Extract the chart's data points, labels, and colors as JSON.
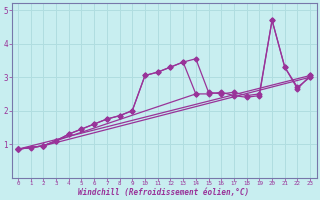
{
  "xlabel": "Windchill (Refroidissement éolien,°C)",
  "bg_color": "#c8eef0",
  "grid_color": "#b0dde0",
  "line_color": "#993399",
  "spine_color": "#7777aa",
  "xlim": [
    -0.5,
    23.5
  ],
  "ylim": [
    0,
    5.2
  ],
  "yticks": [
    1,
    2,
    3,
    4,
    5
  ],
  "xticks": [
    0,
    1,
    2,
    3,
    4,
    5,
    6,
    7,
    8,
    9,
    10,
    11,
    12,
    13,
    14,
    15,
    16,
    17,
    18,
    19,
    20,
    21,
    22,
    23
  ],
  "series1_x": [
    0,
    1,
    2,
    23
  ],
  "series1_y": [
    0.85,
    0.9,
    0.95,
    3.0
  ],
  "series2_x": [
    0,
    2,
    3,
    4,
    5,
    6,
    7,
    8,
    9,
    10,
    11,
    12,
    13,
    14,
    15,
    16,
    17,
    18,
    19,
    20,
    21,
    22,
    23
  ],
  "series2_y": [
    0.85,
    0.95,
    1.1,
    1.3,
    1.45,
    1.6,
    1.75,
    1.85,
    2.0,
    3.05,
    3.15,
    3.3,
    3.45,
    3.55,
    2.55,
    2.5,
    2.55,
    2.45,
    2.5,
    4.7,
    3.3,
    2.7,
    3.0
  ],
  "series3_x": [
    0,
    2,
    3,
    4,
    5,
    6,
    7,
    8,
    9,
    10,
    11,
    12,
    13,
    14
  ],
  "series3_y": [
    0.85,
    0.95,
    1.1,
    1.3,
    1.45,
    1.6,
    1.75,
    1.85,
    2.0,
    3.05,
    3.15,
    3.3,
    3.45,
    2.5
  ],
  "series4_x": [
    0,
    2,
    3,
    14,
    15,
    16,
    17,
    18,
    19,
    20,
    21,
    22,
    23
  ],
  "series4_y": [
    0.85,
    0.95,
    1.1,
    2.5,
    2.5,
    2.55,
    2.45,
    2.4,
    2.45,
    4.7,
    3.3,
    2.65,
    3.05
  ],
  "series5_x": [
    0,
    23
  ],
  "series5_y": [
    0.85,
    3.05
  ]
}
